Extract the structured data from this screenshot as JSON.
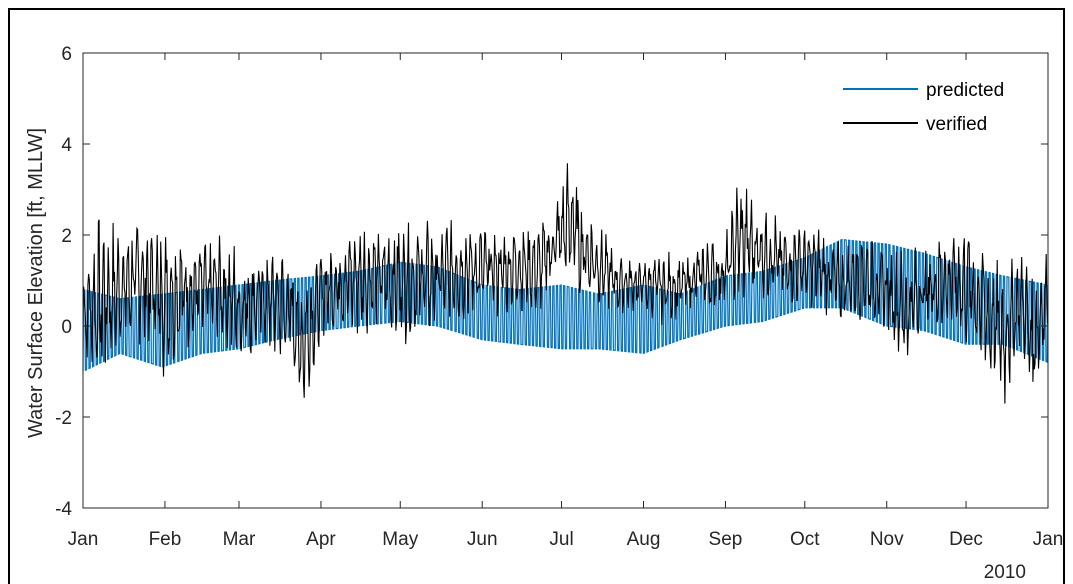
{
  "chart_data": {
    "type": "line",
    "title": "",
    "xlabel": "",
    "ylabel": "Water Surface Elevation [ft, MLLW]",
    "x_tick_labels": [
      "Jan",
      "Feb",
      "Mar",
      "Apr",
      "May",
      "Jun",
      "Jul",
      "Aug",
      "Sep",
      "Oct",
      "Nov",
      "Dec",
      "Jan"
    ],
    "x_secondary_label": "2010",
    "xlim": [
      "2010-01-01",
      "2011-01-01"
    ],
    "ylim": [
      -4,
      6
    ],
    "y_ticks": [
      -4,
      -2,
      0,
      2,
      4,
      6
    ],
    "grid": false,
    "legend_position": "top-right",
    "series": [
      {
        "name": "predicted",
        "color": "#0072BD",
        "kind": "band",
        "x": [
          "2010-01-01",
          "2010-01-15",
          "2010-01-31",
          "2010-02-15",
          "2010-03-01",
          "2010-03-15",
          "2010-04-01",
          "2010-04-15",
          "2010-05-01",
          "2010-05-15",
          "2010-06-01",
          "2010-06-15",
          "2010-07-01",
          "2010-07-15",
          "2010-08-01",
          "2010-08-15",
          "2010-09-01",
          "2010-09-15",
          "2010-10-01",
          "2010-10-15",
          "2010-11-01",
          "2010-11-15",
          "2010-12-01",
          "2010-12-15",
          "2011-01-01"
        ],
        "low": [
          -1.0,
          -0.6,
          -0.9,
          -0.6,
          -0.5,
          -0.3,
          -0.1,
          0.0,
          0.1,
          0.0,
          -0.3,
          -0.4,
          -0.5,
          -0.5,
          -0.6,
          -0.3,
          0.0,
          0.1,
          0.4,
          0.4,
          0.0,
          -0.1,
          -0.4,
          -0.4,
          -0.8
        ],
        "high": [
          0.8,
          0.6,
          0.7,
          0.8,
          0.9,
          1.0,
          1.1,
          1.2,
          1.4,
          1.3,
          0.9,
          0.8,
          0.9,
          0.7,
          0.9,
          0.7,
          1.1,
          1.2,
          1.5,
          1.9,
          1.8,
          1.6,
          1.3,
          1.1,
          0.9
        ]
      },
      {
        "name": "verified",
        "color": "#000000",
        "kind": "line",
        "x": [
          "2010-01-01",
          "2010-01-08",
          "2010-01-15",
          "2010-01-22",
          "2010-02-01",
          "2010-02-08",
          "2010-02-15",
          "2010-02-22",
          "2010-03-01",
          "2010-03-08",
          "2010-03-15",
          "2010-03-22",
          "2010-03-24",
          "2010-04-01",
          "2010-04-08",
          "2010-04-15",
          "2010-04-22",
          "2010-05-01",
          "2010-05-08",
          "2010-05-15",
          "2010-05-22",
          "2010-06-01",
          "2010-06-08",
          "2010-06-15",
          "2010-06-22",
          "2010-07-01",
          "2010-07-05",
          "2010-07-08",
          "2010-07-15",
          "2010-07-22",
          "2010-08-01",
          "2010-08-08",
          "2010-08-15",
          "2010-08-22",
          "2010-09-01",
          "2010-09-06",
          "2010-09-15",
          "2010-09-22",
          "2010-10-01",
          "2010-10-08",
          "2010-10-15",
          "2010-10-22",
          "2010-11-01",
          "2010-11-08",
          "2010-11-15",
          "2010-11-22",
          "2010-12-01",
          "2010-12-06",
          "2010-12-15",
          "2010-12-22",
          "2010-12-26",
          "2011-01-01"
        ],
        "low": [
          -0.8,
          -1.6,
          -0.6,
          -0.4,
          -1.4,
          -0.6,
          -0.5,
          -0.3,
          -1.2,
          -0.5,
          -0.8,
          -1.2,
          -2.4,
          -0.3,
          -0.2,
          -0.3,
          -0.1,
          -0.5,
          -0.2,
          -0.3,
          0.0,
          0.2,
          0.1,
          0.3,
          0.2,
          0.8,
          0.6,
          0.5,
          0.4,
          0.2,
          0.3,
          0.0,
          0.1,
          0.3,
          0.3,
          0.4,
          0.6,
          0.3,
          0.5,
          0.2,
          0.0,
          0.1,
          -0.1,
          -1.1,
          -0.3,
          -0.2,
          -0.5,
          -1.0,
          -2.0,
          -0.4,
          -2.1,
          -0.2
        ],
        "high": [
          1.4,
          2.7,
          2.2,
          2.5,
          2.8,
          2.1,
          2.0,
          2.0,
          2.0,
          1.7,
          1.9,
          1.6,
          1.5,
          1.6,
          2.2,
          2.4,
          2.3,
          2.5,
          2.3,
          2.4,
          2.4,
          2.3,
          2.3,
          2.4,
          2.2,
          3.3,
          4.0,
          3.0,
          2.3,
          1.7,
          1.5,
          1.7,
          1.6,
          1.9,
          2.0,
          3.4,
          2.7,
          2.4,
          2.2,
          2.2,
          1.8,
          2.2,
          1.7,
          1.8,
          1.8,
          2.2,
          2.3,
          2.1,
          1.5,
          1.6,
          1.4,
          1.7
        ]
      }
    ]
  }
}
